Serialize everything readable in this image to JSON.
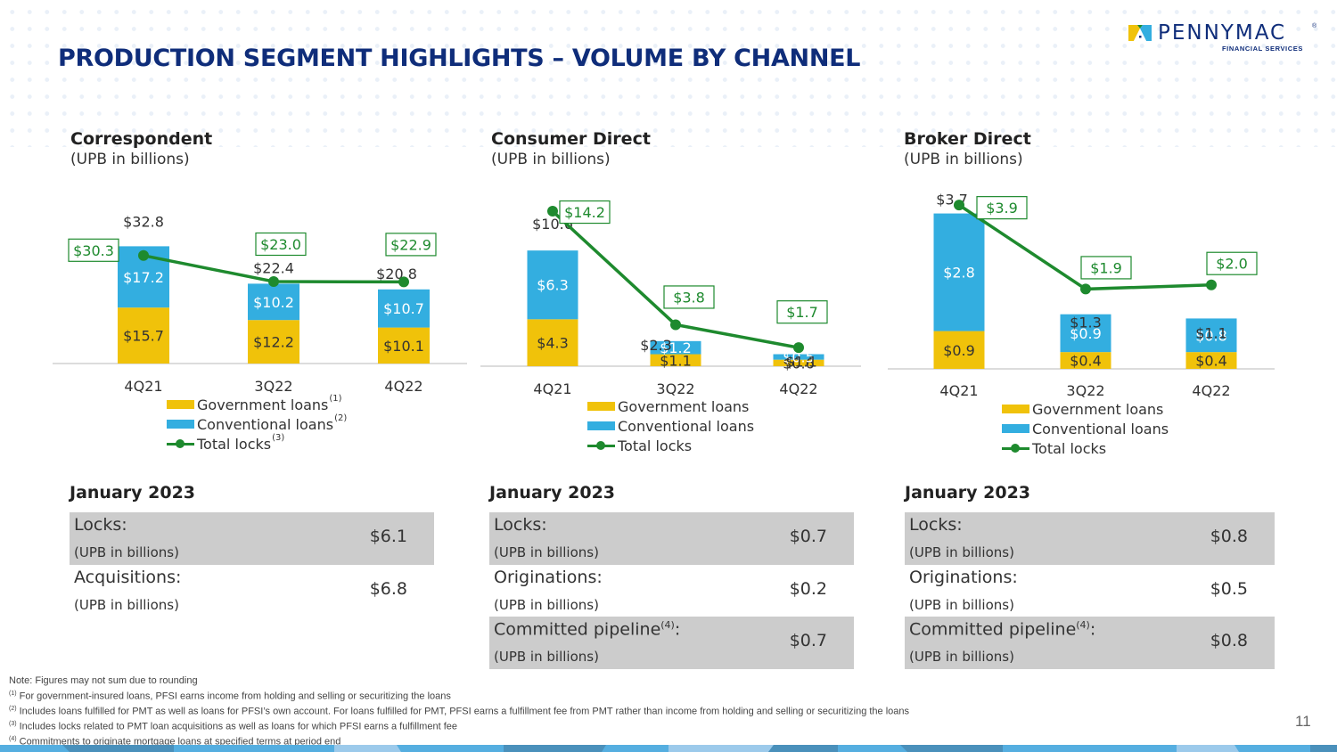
{
  "header": {
    "title": "PRODUCTION SEGMENT HIGHLIGHTS – VOLUME BY CHANNEL",
    "logo_word": "PENNYMAC",
    "logo_sub": "FINANCIAL SERVICES",
    "logo_reg": "®"
  },
  "colors": {
    "title": "#0f2d7a",
    "government": "#f0c20a",
    "conventional": "#33aee0",
    "total_locks": "#1e8a2e",
    "table_shade": "#cccccc"
  },
  "chart_data": [
    {
      "type": "bar",
      "stacked": true,
      "title": "Correspondent",
      "subtitle": "(UPB in billions)",
      "categories": [
        "4Q21",
        "3Q22",
        "4Q22"
      ],
      "series": [
        {
          "name": "Government loans",
          "footnote": "(1)",
          "values": [
            15.7,
            12.2,
            10.1
          ],
          "labels": [
            "$15.7",
            "$12.2",
            "$10.1"
          ]
        },
        {
          "name": "Conventional loans",
          "footnote": "(2)",
          "values": [
            17.2,
            10.2,
            10.7
          ],
          "labels": [
            "$17.2",
            "$10.2",
            "$10.7"
          ]
        }
      ],
      "totals": {
        "values": [
          32.8,
          22.4,
          20.8
        ],
        "labels": [
          "$32.8",
          "$22.4",
          "$20.8"
        ]
      },
      "line": {
        "name": "Total locks",
        "footnote": "(3)",
        "values": [
          30.3,
          23.0,
          22.9
        ],
        "labels": [
          "$30.3",
          "$23.0",
          "$22.9"
        ]
      },
      "ylim": [
        0,
        37
      ],
      "legend": "bottom"
    },
    {
      "type": "bar",
      "stacked": true,
      "title": "Consumer Direct",
      "subtitle": "(UPB in billions)",
      "categories": [
        "4Q21",
        "3Q22",
        "4Q22"
      ],
      "series": [
        {
          "name": "Government loans",
          "footnote": "",
          "values": [
            4.3,
            1.1,
            0.6
          ],
          "labels": [
            "$4.3",
            "$1.1",
            "$0.6"
          ]
        },
        {
          "name": "Conventional loans",
          "footnote": "",
          "values": [
            6.3,
            1.2,
            0.5
          ],
          "labels": [
            "$6.3",
            "$1.2",
            "$0.5"
          ]
        }
      ],
      "totals": {
        "values": [
          10.6,
          2.3,
          1.1
        ],
        "labels": [
          "$10.6",
          "$2.3",
          "$1.1"
        ]
      },
      "line": {
        "name": "Total locks",
        "footnote": "",
        "values": [
          14.2,
          3.8,
          1.7
        ],
        "labels": [
          "$14.2",
          "$3.8",
          "$1.7"
        ]
      },
      "ylim": [
        0,
        16
      ],
      "legend": "bottom"
    },
    {
      "type": "bar",
      "stacked": true,
      "title": "Broker Direct",
      "subtitle": "(UPB in billions)",
      "categories": [
        "4Q21",
        "3Q22",
        "4Q22"
      ],
      "series": [
        {
          "name": "Government loans",
          "footnote": "",
          "values": [
            0.9,
            0.4,
            0.4
          ],
          "labels": [
            "$0.9",
            "$0.4",
            "$0.4"
          ]
        },
        {
          "name": "Conventional loans",
          "footnote": "",
          "values": [
            2.8,
            0.9,
            0.8
          ],
          "labels": [
            "$2.8",
            "$0.9",
            "$0.8"
          ]
        }
      ],
      "totals": {
        "values": [
          3.7,
          1.3,
          1.1
        ],
        "labels": [
          "$3.7",
          "$1.3",
          "$1.1"
        ]
      },
      "line": {
        "name": "Total locks",
        "footnote": "",
        "values": [
          3.9,
          1.9,
          2.0
        ],
        "labels": [
          "$3.9",
          "$1.9",
          "$2.0"
        ]
      },
      "ylim": [
        0,
        4.2
      ],
      "legend": "bottom"
    }
  ],
  "january": [
    {
      "title": "January 2023",
      "rows": [
        {
          "label": "Locks:",
          "sup": "",
          "unit": "(UPB in billions)",
          "value": "$6.1",
          "shaded": true
        },
        {
          "label": "Acquisitions:",
          "sup": "",
          "unit": "(UPB in billions)",
          "value": "$6.8",
          "shaded": false
        }
      ]
    },
    {
      "title": "January 2023",
      "rows": [
        {
          "label": "Locks:",
          "sup": "",
          "unit": "(UPB in billions)",
          "value": "$0.7",
          "shaded": true
        },
        {
          "label": "Originations:",
          "sup": "",
          "unit": "(UPB in billions)",
          "value": "$0.2",
          "shaded": false
        },
        {
          "label": "Committed pipeline",
          "sup": "(4)",
          "suffix": ":",
          "unit": "(UPB in billions)",
          "value": "$0.7",
          "shaded": true
        }
      ]
    },
    {
      "title": "January 2023",
      "rows": [
        {
          "label": "Locks:",
          "sup": "",
          "unit": "(UPB in billions)",
          "value": "$0.8",
          "shaded": true
        },
        {
          "label": "Originations:",
          "sup": "",
          "unit": "(UPB in billions)",
          "value": "$0.5",
          "shaded": false
        },
        {
          "label": "Committed pipeline",
          "sup": "(4)",
          "suffix": ":",
          "unit": "(UPB in billions)",
          "value": "$0.8",
          "shaded": true
        }
      ]
    }
  ],
  "notes": {
    "note": "Note: Figures may not sum due to rounding",
    "footnotes": [
      {
        "mark": "(1)",
        "text": " For government-insured  loans, PFSI earns income from holding and selling or securitizing the loans"
      },
      {
        "mark": "(2)",
        "text": " Includes loans fulfilled for PMT as well as loans for PFSI’s own account. For loans fulfilled for PMT, PFSI earns a fulfillment fee from PMT rather than income from holding and selling or securitizing the loans"
      },
      {
        "mark": "(3)",
        "text": " Includes locks related to PMT loan acquisitions as well as loans for which PFSI earns a fulfillment fee"
      },
      {
        "mark": "(4)",
        "text": " Commitments to originate mortgage loans at specified terms at period end"
      }
    ]
  },
  "page_number": "11"
}
